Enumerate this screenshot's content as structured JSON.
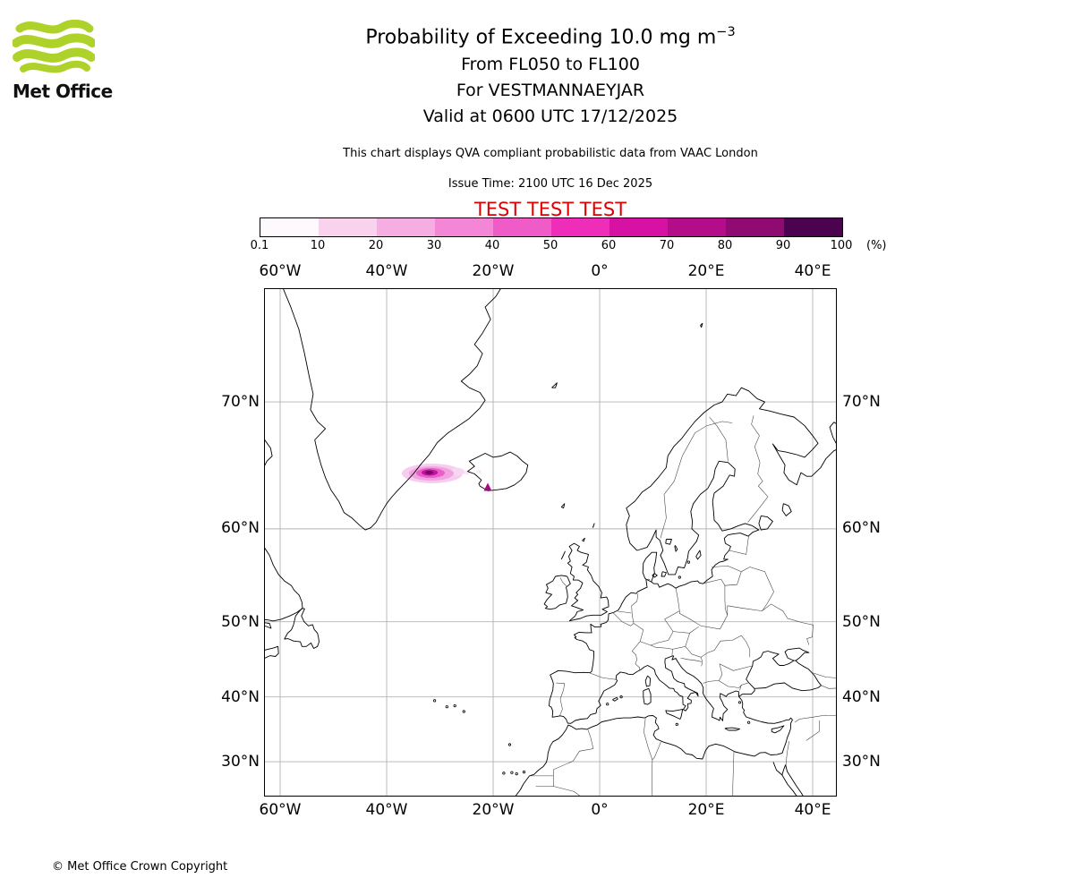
{
  "logo": {
    "brand": "Met Office"
  },
  "header": {
    "title": "Probability of Exceeding 10.0 mg m",
    "title_exponent": "−3",
    "levels": "From FL050 to FL100",
    "volcano": "For VESTMANNAEYJAR",
    "valid": "Valid at 0600 UTC 17/12/2025",
    "description": "This chart displays QVA compliant probabilistic data from VAAC London",
    "issue_time": "Issue Time: 2100 UTC 16 Dec 2025",
    "test_banner": "TEST TEST TEST"
  },
  "colorbar": {
    "ticks": [
      "0.1",
      "10",
      "20",
      "30",
      "40",
      "50",
      "60",
      "70",
      "80",
      "90",
      "100"
    ],
    "unit": "(%)",
    "colors": [
      "#fef9fd",
      "#f9d2ee",
      "#f6aee2",
      "#f387d5",
      "#f05cc7",
      "#ee2eb9",
      "#d611a3",
      "#b30d8a",
      "#8f0a71",
      "#4b0350"
    ]
  },
  "map": {
    "lon_labels": [
      "60°W",
      "40°W",
      "20°W",
      "0°",
      "20°E",
      "40°E"
    ],
    "lat_labels": [
      "70°N",
      "60°N",
      "50°N",
      "40°N",
      "30°N"
    ]
  },
  "colors": {
    "test_banner_red": "#dd0000",
    "logo_green": "#aed229",
    "grid_gray": "#b3b3b3",
    "ash_core_purple": "#6b0763",
    "volcano_marker_magenta": "#a10d83"
  },
  "footer": {
    "copyright": "© Met Office Crown Copyright"
  }
}
